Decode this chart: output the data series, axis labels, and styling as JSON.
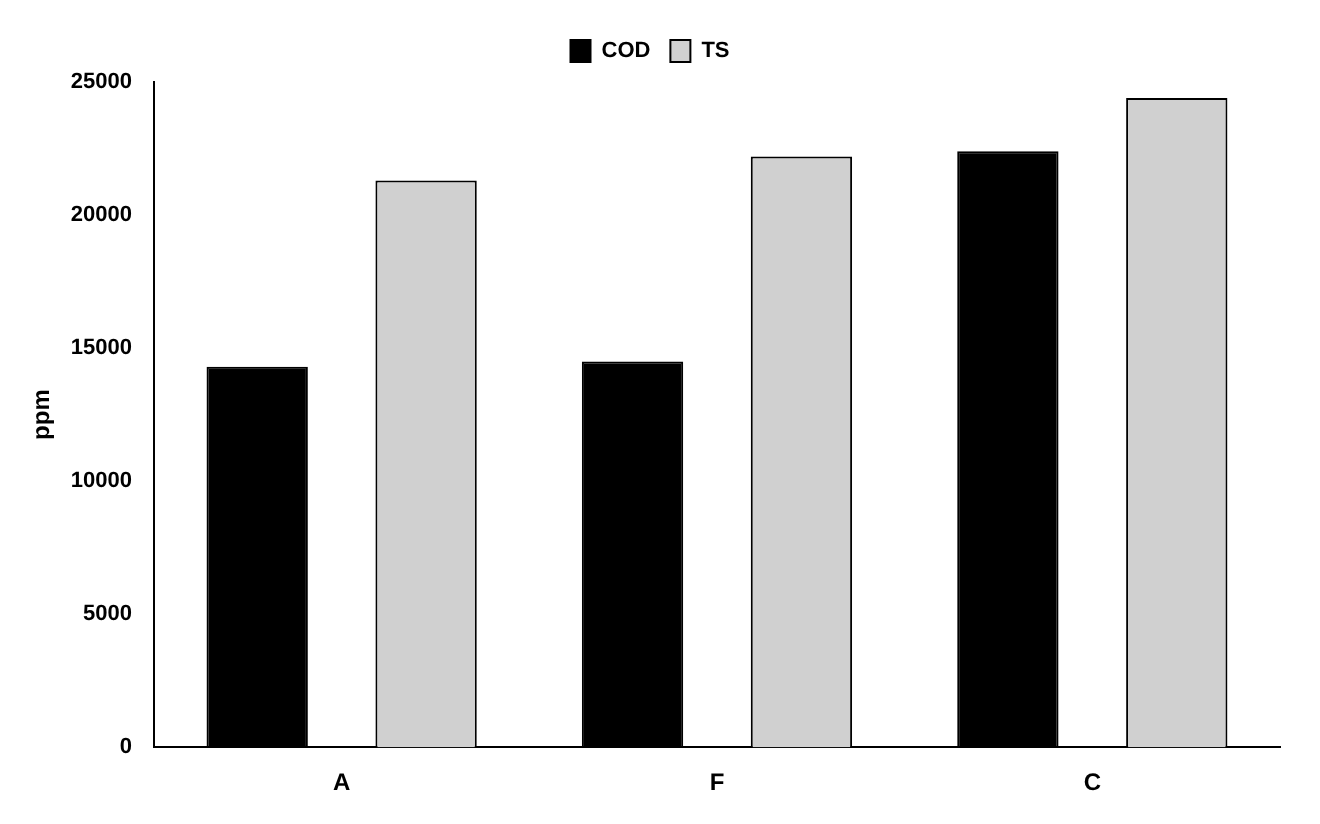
{
  "chart_data": {
    "type": "bar",
    "ylabel": "ppm",
    "categories": [
      "A",
      "F",
      "C"
    ],
    "series": [
      {
        "name": "COD",
        "color": "#000000",
        "values": [
          14300,
          14500,
          22400
        ]
      },
      {
        "name": "TS",
        "color": "#d0d0d0",
        "values": [
          21300,
          22200,
          24400
        ]
      }
    ],
    "ylim": [
      0,
      25000
    ],
    "yticks": [
      0,
      5000,
      10000,
      15000,
      20000,
      25000
    ],
    "grid": false,
    "legend": "top"
  }
}
